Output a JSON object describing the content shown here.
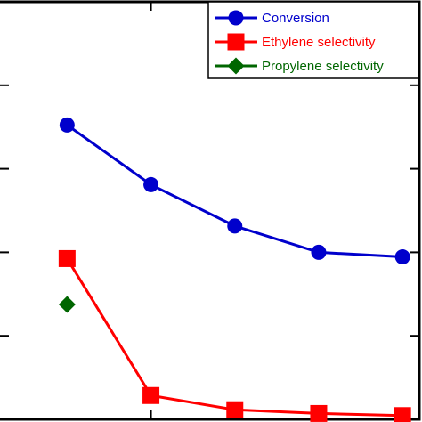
{
  "chart_data": {
    "type": "line",
    "x": [
      1,
      2,
      3,
      4,
      5
    ],
    "xlim": [
      0.2,
      5.2
    ],
    "ylim": [
      0,
      100
    ],
    "grid": false,
    "legend": "top-right",
    "series": [
      {
        "name": "Conversion",
        "x": [
          1,
          2,
          3,
          4,
          5
        ],
        "values": [
          70.5,
          56.2,
          46.3,
          40.0,
          38.9
        ],
        "color": "#0000cc",
        "marker": "circle"
      },
      {
        "name": "Ethylene selectivity",
        "x": [
          1,
          2,
          3,
          4,
          5
        ],
        "values": [
          38.5,
          5.7,
          2.3,
          1.4,
          0.9
        ],
        "color": "#ff0000",
        "marker": "square"
      },
      {
        "name": "Propylene selectivity",
        "x": [
          1
        ],
        "values": [
          27.5
        ],
        "color": "#006600",
        "marker": "diamond"
      }
    ]
  }
}
